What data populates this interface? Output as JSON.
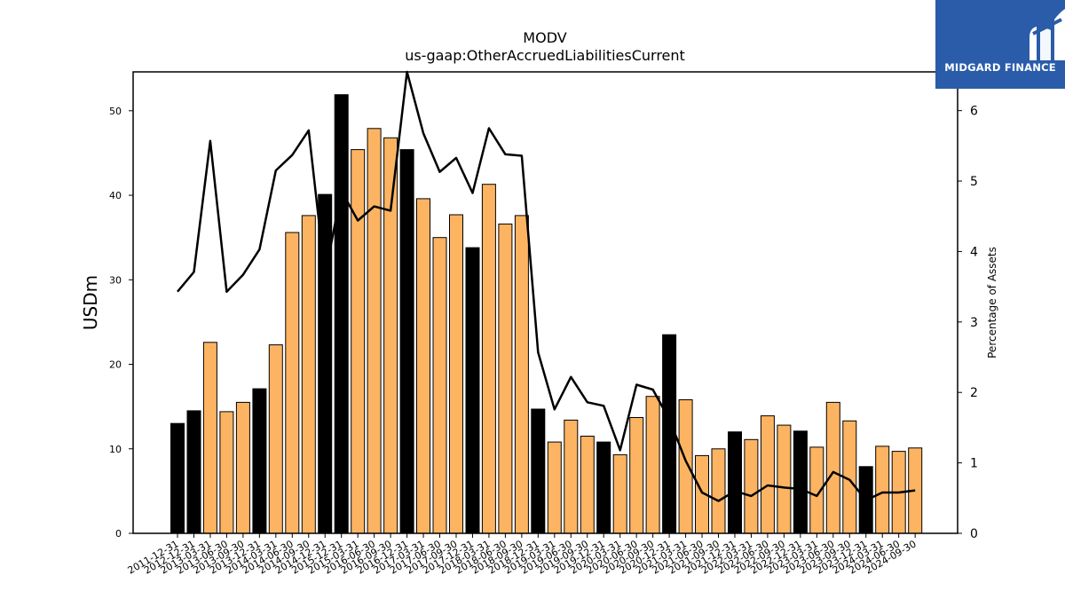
{
  "chart_data": {
    "type": "bar",
    "title": "MODV",
    "subtitle": "us-gaap:OtherAccruedLiabilitiesCurrent",
    "ylabel": "USDm",
    "y2label": "Percentage of Assets",
    "ylim": [
      0,
      54.6
    ],
    "y2lim": [
      0,
      6.55
    ],
    "yticks": [
      "0",
      "10",
      "20",
      "30",
      "40",
      "50"
    ],
    "y2ticks": [
      "0",
      "1",
      "2",
      "3",
      "4",
      "5",
      "6"
    ],
    "categories": [
      "2011-12-31",
      "2012-12-31",
      "2013-03-31",
      "2013-06-30",
      "2013-09-30",
      "2013-12-31",
      "2014-03-31",
      "2014-06-30",
      "2014-09-30",
      "2014-12-31",
      "2015-12-31",
      "2015-03-31",
      "2016-06-30",
      "2016-09-30",
      "2016-12-31",
      "2017-03-31",
      "2017-06-30",
      "2017-09-30",
      "2017-12-31",
      "2018-03-31",
      "2018-06-30",
      "2018-09-30",
      "2018-12-31",
      "2019-03-31",
      "2019-06-30",
      "2019-09-30",
      "2019-12-31",
      "2020-03-31",
      "2020-06-30",
      "2020-09-30",
      "2020-12-31",
      "2021-03-31",
      "2021-06-30",
      "2021-09-30",
      "2021-12-31",
      "2022-03-31",
      "2022-06-30",
      "2022-09-30",
      "2022-12-31",
      "2023-03-31",
      "2023-06-30",
      "2023-09-30",
      "2023-12-31",
      "2024-03-31",
      "2024-06-30",
      "2024-09-30"
    ],
    "series": [
      {
        "type": "bar",
        "values": [
          13.0,
          14.5,
          22.6,
          14.4,
          15.5,
          17.1,
          22.3,
          35.6,
          37.6,
          40.1,
          51.9,
          45.4,
          47.9,
          46.8,
          45.4,
          39.6,
          35.0,
          37.7,
          33.8,
          41.3,
          36.6,
          37.6,
          14.7,
          10.8,
          13.4,
          11.5,
          10.8,
          9.3,
          13.7,
          16.2,
          23.5,
          15.8,
          9.2,
          10.0,
          12.0,
          11.1,
          13.9,
          12.8,
          12.1,
          10.2,
          15.5,
          13.3,
          7.9,
          10.3,
          9.7,
          10.1
        ],
        "highlight": [
          true,
          true,
          false,
          false,
          false,
          true,
          false,
          false,
          false,
          true,
          true,
          false,
          false,
          false,
          true,
          false,
          false,
          false,
          true,
          false,
          false,
          false,
          true,
          false,
          false,
          false,
          true,
          false,
          false,
          false,
          true,
          false,
          false,
          false,
          true,
          false,
          false,
          false,
          true,
          false,
          false,
          false,
          true,
          false,
          false,
          false
        ]
      },
      {
        "type": "line",
        "axis": "right",
        "values": [
          3.43,
          3.71,
          5.57,
          3.43,
          3.67,
          4.03,
          5.15,
          5.37,
          5.72,
          3.66,
          4.86,
          4.44,
          4.64,
          4.58,
          6.55,
          5.68,
          5.13,
          5.33,
          4.83,
          5.75,
          5.38,
          5.36,
          2.57,
          1.76,
          2.22,
          1.86,
          1.81,
          1.18,
          2.11,
          2.04,
          1.62,
          1.03,
          0.58,
          0.46,
          0.6,
          0.53,
          0.68,
          0.65,
          0.63,
          0.53,
          0.87,
          0.76,
          0.47,
          0.58,
          0.58,
          0.61
        ]
      }
    ],
    "colors": {
      "bar": "#fdb462",
      "bar_highlight": "#000000",
      "line": "#000000",
      "edge": "#000000"
    }
  },
  "brand": {
    "name": "MIDGARD FINANCE",
    "bg": "#2a5caa"
  }
}
